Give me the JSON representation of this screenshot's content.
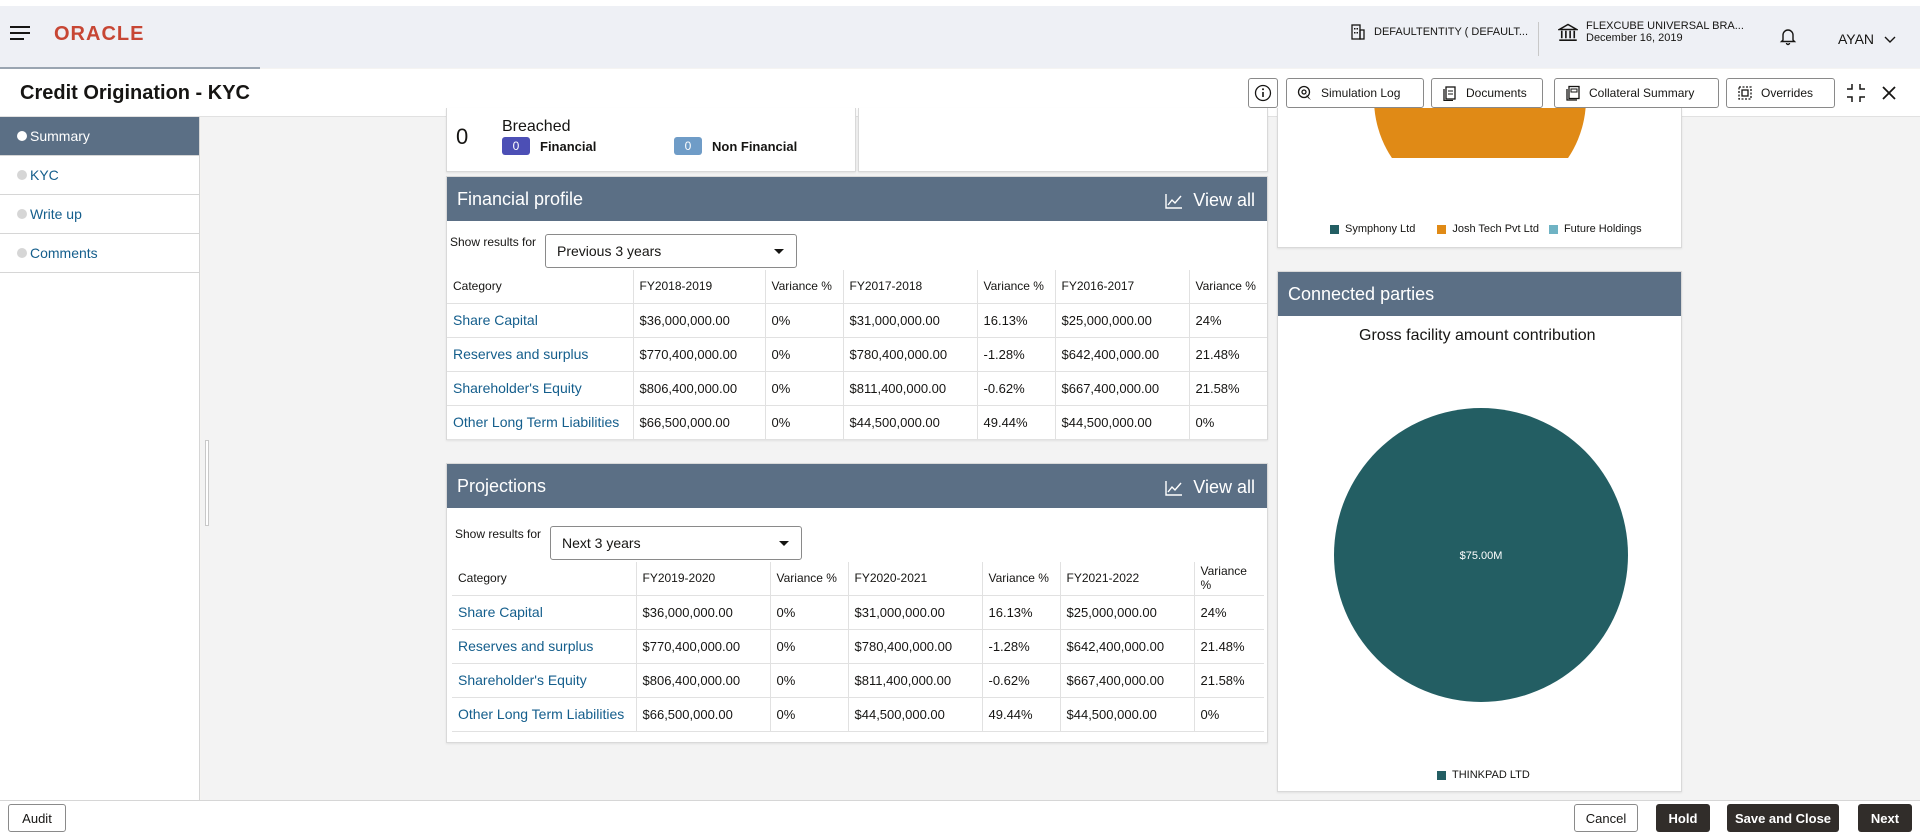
{
  "header": {
    "logo": "ORACLE",
    "entity": "DEFAULTENTITY ( DEFAULT...",
    "branch_name": "FLEXCUBE UNIVERSAL BRA...",
    "branch_date": "December 16, 2019",
    "user": "AYAN",
    "icons": [
      "hamburger-icon",
      "building-icon",
      "bank-icon",
      "bell-icon",
      "chevron-down-icon"
    ]
  },
  "titlebar": {
    "title": "Credit Origination - KYC",
    "buttons": {
      "simulation_log": "Simulation Log",
      "documents": "Documents",
      "collateral_summary": "Collateral Summary",
      "overrides": "Overrides"
    }
  },
  "nav": {
    "items": [
      {
        "label": "Summary",
        "active": true
      },
      {
        "label": "KYC",
        "active": false
      },
      {
        "label": "Write up",
        "active": false
      },
      {
        "label": "Comments",
        "active": false
      }
    ]
  },
  "breached": {
    "count": "0",
    "label": "Breached",
    "financial_count": "0",
    "financial_label": "Financial",
    "non_financial_count": "0",
    "non_financial_label": "Non Financial"
  },
  "financial_profile": {
    "title": "Financial profile",
    "view_all": "View all",
    "show_for": "Show results for",
    "selected": "Previous 3 years",
    "columns": [
      "Category",
      "FY2018-2019",
      "Variance %",
      "FY2017-2018",
      "Variance %",
      "FY2016-2017",
      "Variance %"
    ],
    "rows": [
      [
        "Share Capital",
        "$36,000,000.00",
        "0%",
        "$31,000,000.00",
        "16.13%",
        "$25,000,000.00",
        "24%"
      ],
      [
        "Reserves and surplus",
        "$770,400,000.00",
        "0%",
        "$780,400,000.00",
        "-1.28%",
        "$642,400,000.00",
        "21.48%"
      ],
      [
        "Shareholder's Equity",
        "$806,400,000.00",
        "0%",
        "$811,400,000.00",
        "-0.62%",
        "$667,400,000.00",
        "21.58%"
      ],
      [
        "Other Long Term Liabilities",
        "$66,500,000.00",
        "0%",
        "$44,500,000.00",
        "49.44%",
        "$44,500,000.00",
        "0%"
      ]
    ]
  },
  "projections": {
    "title": "Projections",
    "view_all": "View all",
    "show_for": "Show results for",
    "selected": "Next 3 years",
    "columns": [
      "Category",
      "FY2019-2020",
      "Variance %",
      "FY2020-2021",
      "Variance %",
      "FY2021-2022",
      "Variance %"
    ],
    "rows": [
      [
        "Share Capital",
        "$36,000,000.00",
        "0%",
        "$31,000,000.00",
        "16.13%",
        "$25,000,000.00",
        "24%"
      ],
      [
        "Reserves and surplus",
        "$770,400,000.00",
        "0%",
        "$780,400,000.00",
        "-1.28%",
        "$642,400,000.00",
        "21.48%"
      ],
      [
        "Shareholder's Equity",
        "$806,400,000.00",
        "0%",
        "$811,400,000.00",
        "-0.62%",
        "$667,400,000.00",
        "21.58%"
      ],
      [
        "Other Long Term Liabilities",
        "$66,500,000.00",
        "0%",
        "$44,500,000.00",
        "49.44%",
        "$44,500,000.00",
        "0%"
      ]
    ]
  },
  "group_chart": {
    "legend": [
      {
        "name": "Symphony Ltd",
        "color": "#235e63"
      },
      {
        "name": "Josh Tech Pvt Ltd",
        "color": "#e08a16"
      },
      {
        "name": "Future Holdings",
        "color": "#6fb3c4"
      }
    ]
  },
  "connected_parties": {
    "title": "Connected parties",
    "chart_title": "Gross facility amount contribution",
    "slice_label": "$75.00M",
    "legend": [
      {
        "name": "THINKPAD LTD",
        "color": "#235e63"
      }
    ]
  },
  "footer": {
    "audit": "Audit",
    "cancel": "Cancel",
    "hold": "Hold",
    "save_close": "Save and Close",
    "next": "Next"
  },
  "colors": {
    "accent": "#5b6f85",
    "link": "#145e8c",
    "brand": "#c74634",
    "pill_financial": "#4c4fb5",
    "pill_non_financial": "#6f9cc7"
  }
}
